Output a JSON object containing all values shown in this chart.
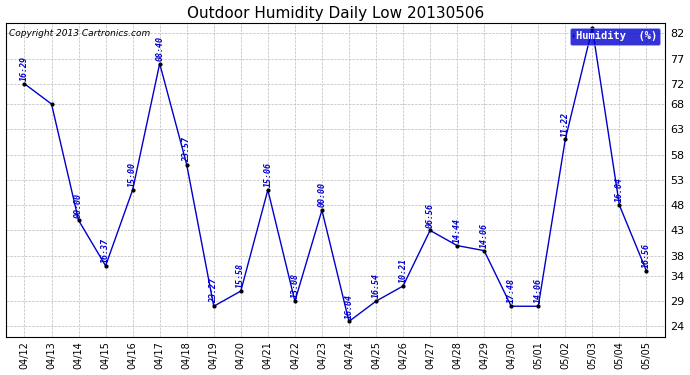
{
  "title": "Outdoor Humidity Daily Low 20130506",
  "copyright": "Copyright 2013 Cartronics.com",
  "background_color": "#ffffff",
  "line_color": "#0000cc",
  "marker_color": "#000000",
  "annotation_color": "#0000cc",
  "grid_color": "#bbbbbb",
  "ylim": [
    22,
    84
  ],
  "yticks": [
    24,
    29,
    34,
    38,
    43,
    48,
    53,
    58,
    63,
    68,
    72,
    77,
    82
  ],
  "dates": [
    "04/12",
    "04/13",
    "04/14",
    "04/15",
    "04/16",
    "04/17",
    "04/18",
    "04/19",
    "04/20",
    "04/21",
    "04/22",
    "04/23",
    "04/24",
    "04/25",
    "04/26",
    "04/27",
    "04/28",
    "04/29",
    "04/30",
    "05/01",
    "05/02",
    "05/03",
    "05/04",
    "05/05"
  ],
  "values": [
    72,
    68,
    45,
    36,
    51,
    76,
    56,
    28,
    31,
    51,
    29,
    47,
    25,
    29,
    32,
    43,
    40,
    39,
    28,
    28,
    61,
    83,
    48,
    35
  ],
  "time_labels": [
    "16:29",
    "",
    "00:00",
    "16:37",
    "15:00",
    "08:40",
    "23:57",
    "23:27",
    "15:58",
    "15:06",
    "13:08",
    "00:00",
    "16:04",
    "16:54",
    "10:21",
    "06:56",
    "14:44",
    "14:06",
    "17:48",
    "14:06",
    "11:22",
    "",
    "16:04",
    "16:56"
  ],
  "legend_label": "Humidity  (%)",
  "legend_bg": "#0000cc",
  "legend_text_color": "#ffffff",
  "border_color": "#000000"
}
